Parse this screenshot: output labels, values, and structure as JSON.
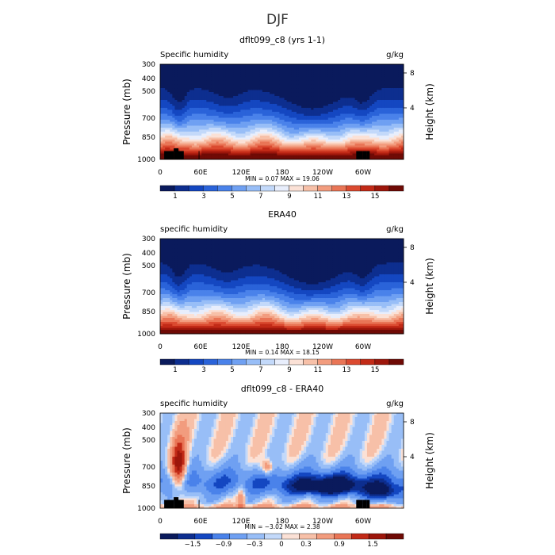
{
  "figure_title": "DJF",
  "chart_data": [
    {
      "type": "heatmap",
      "title": "dflt099_c8 (yrs 1-1)",
      "variable_label": "Specific humidity",
      "units": "g/kg",
      "xlabel": "",
      "ylabel": "Pressure (mb)",
      "y2label": "Height (km)",
      "x_ticks": [
        "0",
        "60E",
        "120E",
        "180",
        "120W",
        "60W"
      ],
      "y_ticks": [
        "300",
        "400",
        "500",
        "700",
        "850",
        "1000"
      ],
      "y2_ticks": [
        "8",
        "4"
      ],
      "xlim": [
        0,
        360
      ],
      "ylim": [
        1000,
        300
      ],
      "stats": "MIN =    0.07   MAX =   19.06",
      "min": 0.07,
      "max": 19.06,
      "colorbar_ticks": [
        "1",
        "3",
        "5",
        "7",
        "9",
        "11",
        "13",
        "15"
      ],
      "levels": [
        0,
        1,
        2,
        3,
        4,
        5,
        6,
        7,
        8,
        9,
        10,
        11,
        12,
        13,
        14,
        15,
        16
      ],
      "field": "humidity",
      "scale": 1.0,
      "terrain": true
    },
    {
      "type": "heatmap",
      "title": "ERA40",
      "variable_label": "specific humidity",
      "units": "g/kg",
      "xlabel": "",
      "ylabel": "Pressure (mb)",
      "y2label": "Height (km)",
      "x_ticks": [
        "0",
        "60E",
        "120E",
        "180",
        "120W",
        "60W"
      ],
      "y_ticks": [
        "300",
        "400",
        "500",
        "700",
        "850",
        "1000"
      ],
      "y2_ticks": [
        "8",
        "4"
      ],
      "xlim": [
        0,
        360
      ],
      "ylim": [
        1000,
        300
      ],
      "stats": "MIN =    0.14   MAX =   18.15",
      "min": 0.14,
      "max": 18.15,
      "colorbar_ticks": [
        "1",
        "3",
        "5",
        "7",
        "9",
        "11",
        "13",
        "15"
      ],
      "levels": [
        0,
        1,
        2,
        3,
        4,
        5,
        6,
        7,
        8,
        9,
        10,
        11,
        12,
        13,
        14,
        15,
        16
      ],
      "field": "humidity",
      "scale": 0.96,
      "terrain": false
    },
    {
      "type": "heatmap",
      "title": "dflt099_c8 - ERA40",
      "variable_label": "specific humidity",
      "units": "g/kg",
      "xlabel": "",
      "ylabel": "Pressure (mb)",
      "y2label": "Height (km)",
      "x_ticks": [
        "0",
        "60E",
        "120E",
        "180",
        "120W",
        "60W"
      ],
      "y_ticks": [
        "300",
        "400",
        "500",
        "700",
        "850",
        "1000"
      ],
      "y2_ticks": [
        "8",
        "4"
      ],
      "xlim": [
        0,
        360
      ],
      "ylim": [
        1000,
        300
      ],
      "stats": "MIN =   −3.02   MAX =    2.38",
      "min": -3.02,
      "max": 2.38,
      "colorbar_ticks": [
        "−1.5",
        "−0.9",
        "−0.3",
        "0",
        "0.3",
        "0.9",
        "1.5"
      ],
      "levels": [
        -2.0,
        -1.5,
        -1.2,
        -0.9,
        -0.6,
        -0.3,
        -0.1,
        0,
        0.1,
        0.3,
        0.6,
        0.9,
        1.2,
        1.5,
        2.0
      ],
      "field": "difference",
      "scale": 1.0,
      "terrain": true
    }
  ],
  "colors": {
    "palette": [
      "#0a1a5c",
      "#0d2e8f",
      "#1447c1",
      "#2a63d9",
      "#4a82ea",
      "#6fa0f2",
      "#98bef7",
      "#c3d9fa",
      "#e8eefc",
      "#fbe1d6",
      "#f7c0a8",
      "#f29c7e",
      "#e97556",
      "#db4a30",
      "#c22a17",
      "#9d160b",
      "#6f0a05"
    ],
    "terrain": "#000000"
  }
}
